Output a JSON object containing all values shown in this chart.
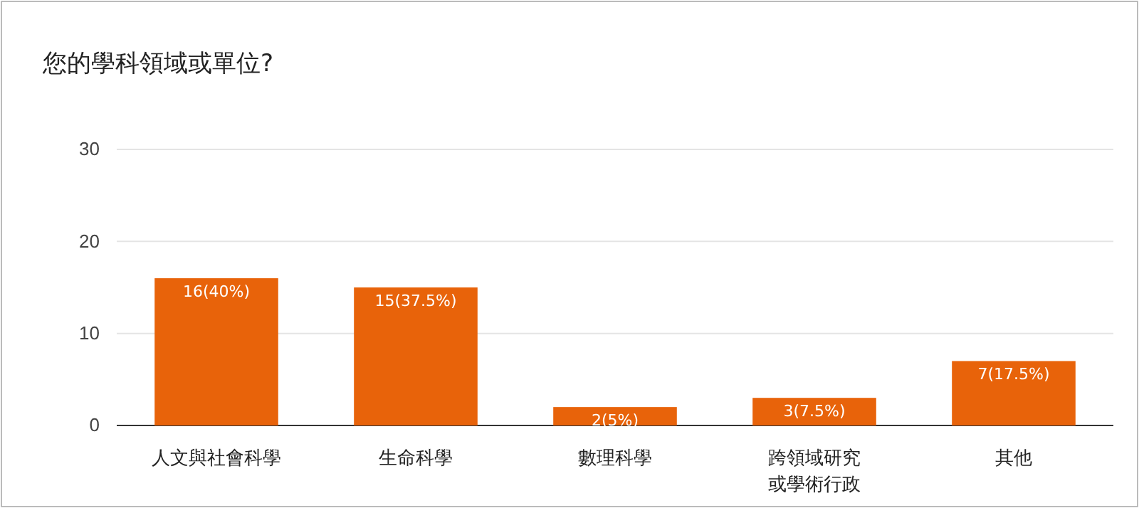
{
  "chart_data": {
    "type": "bar",
    "title": "您的學科領域或單位?",
    "categories": [
      "人文與社會科學",
      "生命科學",
      "數理科學",
      "跨領域研究或學術行政",
      "其他"
    ],
    "values": [
      16,
      15,
      2,
      3,
      7
    ],
    "value_labels": [
      "16(40%)",
      "15(37.5%)",
      "2(5%)",
      "3(7.5%)",
      "7(17.5%)"
    ],
    "color": "#e8630a",
    "ylim": [
      0,
      30
    ],
    "yticks": [
      0,
      10,
      20,
      30
    ],
    "grid": "y"
  }
}
